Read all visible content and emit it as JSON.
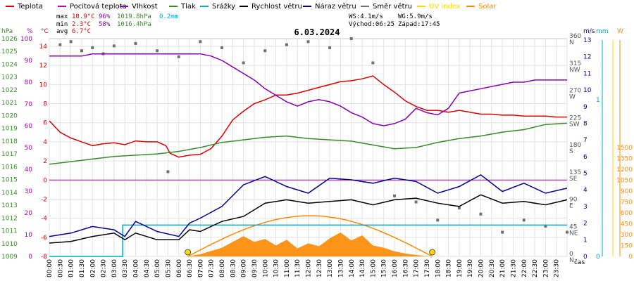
{
  "legend": [
    {
      "label": "Teplota",
      "color": "#dd0000"
    },
    {
      "label": "Pocitová teplota",
      "color": "#b000b0"
    },
    {
      "label": "Vlhkost",
      "color": "#8800b0"
    },
    {
      "label": "Tlak",
      "color": "#3a8a2a"
    },
    {
      "label": "Srážky",
      "color": "#00a8c8"
    },
    {
      "label": "Rychlost větru",
      "color": "#000000"
    },
    {
      "label": "Náraz větru",
      "color": "#000090"
    },
    {
      "label": "Směr větru",
      "color": "#707070"
    },
    {
      "label": "UV index",
      "color": "#ffd800"
    },
    {
      "label": "Solar",
      "color": "#ff8800"
    }
  ],
  "stats": {
    "max": {
      "label": "max",
      "temp": "10.9°C",
      "hum": "96%",
      "press": "1019.8hPa",
      "rain": "0.2mm"
    },
    "min": {
      "label": "min",
      "temp": "2.3°C",
      "hum": "58%",
      "press": "1016.4hPa"
    },
    "avg": {
      "label": "avg",
      "temp": "6.7°C"
    }
  },
  "wind_info": {
    "ws": "WS:4.1m/s",
    "wg": "WG:5.9m/s",
    "sunrise": "Východ:06:25",
    "sunset": "Západ:17:45"
  },
  "date": "6.03.2024",
  "axes": {
    "hpa": {
      "unit": "hPa",
      "ticks": [
        "1009",
        "1010",
        "1011",
        "1012",
        "1013",
        "1014",
        "1015",
        "1016",
        "1017",
        "1018",
        "1019",
        "1020",
        "1021",
        "1022",
        "1023",
        "1024",
        "1025",
        "1026"
      ]
    },
    "pct": {
      "unit": "%",
      "ticks": [
        "0",
        "10",
        "20",
        "30",
        "40",
        "50",
        "60",
        "70",
        "80",
        "90",
        "100"
      ]
    },
    "temp": {
      "unit": "°C",
      "ticks": [
        "-8",
        "-6",
        "-4",
        "-2",
        "0",
        "2",
        "4",
        "6",
        "8",
        "10",
        "12",
        "14"
      ]
    },
    "dir": {
      "ticks": [
        "0",
        "45",
        "90",
        "135",
        "180",
        "225",
        "270",
        "315",
        "360"
      ],
      "names": [
        "N",
        "NE",
        "E",
        "SE",
        "S",
        "SW",
        "W",
        "NW",
        "N"
      ]
    },
    "ms": {
      "unit": "m/s",
      "ticks": [
        "0",
        "1",
        "2",
        "3",
        "4",
        "5",
        "6",
        "7",
        "8",
        "9",
        "10",
        "11",
        "12",
        "13"
      ]
    },
    "mm": {
      "unit": "mm",
      "ticks": [
        "0",
        "1"
      ]
    },
    "w": {
      "unit": "W",
      "ticks": [
        "0",
        "150",
        "300",
        "450",
        "600",
        "750",
        "900",
        "1050",
        "1200",
        "1350",
        "1500"
      ]
    },
    "xlabel": "čas",
    "times": [
      "00:00",
      "00:30",
      "01:00",
      "01:30",
      "02:00",
      "02:30",
      "03:00",
      "03:30",
      "04:00",
      "04:30",
      "05:00",
      "05:30",
      "06:00",
      "06:30",
      "07:00",
      "07:30",
      "08:00",
      "08:30",
      "09:00",
      "09:30",
      "10:00",
      "10:30",
      "11:00",
      "11:30",
      "12:00",
      "12:30",
      "13:00",
      "13:30",
      "14:00",
      "14:30",
      "15:00",
      "15:30",
      "16:00",
      "16:30",
      "17:00",
      "17:30",
      "18:00",
      "18:30",
      "19:00",
      "19:30",
      "20:00",
      "20:30",
      "21:00",
      "21:30",
      "22:00",
      "22:30",
      "23:00",
      "23:30"
    ]
  },
  "chart_data": {
    "type": "line",
    "title": "6.03.2024",
    "x_unit": "hour of day",
    "series": [
      {
        "name": "Teplota",
        "color": "#dd0000",
        "axis": "temp",
        "points": [
          [
            0,
            6.2
          ],
          [
            0.5,
            5.0
          ],
          [
            1,
            4.4
          ],
          [
            1.5,
            4.0
          ],
          [
            2,
            3.6
          ],
          [
            2.5,
            3.8
          ],
          [
            3,
            3.9
          ],
          [
            3.5,
            3.7
          ],
          [
            4,
            4.1
          ],
          [
            4.5,
            4.0
          ],
          [
            5,
            4.0
          ],
          [
            5.4,
            3.6
          ],
          [
            5.6,
            2.8
          ],
          [
            6,
            2.4
          ],
          [
            6.5,
            2.6
          ],
          [
            7,
            2.7
          ],
          [
            7.5,
            3.3
          ],
          [
            8,
            4.6
          ],
          [
            8.5,
            6.3
          ],
          [
            9,
            7.2
          ],
          [
            9.5,
            8.0
          ],
          [
            10,
            8.4
          ],
          [
            10.5,
            8.9
          ],
          [
            11,
            8.9
          ],
          [
            11.5,
            9.1
          ],
          [
            12,
            9.4
          ],
          [
            12.5,
            9.7
          ],
          [
            13,
            10.0
          ],
          [
            13.5,
            10.3
          ],
          [
            14,
            10.4
          ],
          [
            14.5,
            10.6
          ],
          [
            15,
            10.9
          ],
          [
            15.5,
            10.0
          ],
          [
            16,
            9.2
          ],
          [
            16.5,
            8.3
          ],
          [
            17,
            7.7
          ],
          [
            17.5,
            7.3
          ],
          [
            18,
            7.3
          ],
          [
            18.5,
            7.1
          ],
          [
            19,
            7.3
          ],
          [
            19.5,
            7.1
          ],
          [
            20,
            6.9
          ],
          [
            20.5,
            6.9
          ],
          [
            21,
            6.8
          ],
          [
            21.5,
            6.8
          ],
          [
            22,
            6.7
          ],
          [
            22.5,
            6.7
          ],
          [
            23,
            6.7
          ],
          [
            23.5,
            6.6
          ],
          [
            24,
            6.6
          ]
        ]
      },
      {
        "name": "Vlhkost",
        "color": "#8800b0",
        "axis": "pct",
        "points": [
          [
            0,
            92
          ],
          [
            0.5,
            92
          ],
          [
            1,
            92
          ],
          [
            1.5,
            92
          ],
          [
            2,
            93
          ],
          [
            2.5,
            93
          ],
          [
            3,
            93
          ],
          [
            3.5,
            93
          ],
          [
            4,
            93
          ],
          [
            4.5,
            93
          ],
          [
            5,
            93
          ],
          [
            5.5,
            93
          ],
          [
            6,
            93
          ],
          [
            6.5,
            93
          ],
          [
            7,
            93
          ],
          [
            7.5,
            92
          ],
          [
            8,
            90
          ],
          [
            8.5,
            87
          ],
          [
            9,
            84
          ],
          [
            9.5,
            81
          ],
          [
            10,
            77
          ],
          [
            10.5,
            74
          ],
          [
            11,
            71
          ],
          [
            11.5,
            69
          ],
          [
            12,
            71
          ],
          [
            12.5,
            72
          ],
          [
            13,
            71
          ],
          [
            13.5,
            69
          ],
          [
            14,
            66
          ],
          [
            14.5,
            64
          ],
          [
            15,
            61
          ],
          [
            15.5,
            60
          ],
          [
            16,
            61
          ],
          [
            16.5,
            63
          ],
          [
            17,
            68
          ],
          [
            17.5,
            66
          ],
          [
            18,
            65
          ],
          [
            18.5,
            68
          ],
          [
            19,
            75
          ],
          [
            19.5,
            76
          ],
          [
            20,
            77
          ],
          [
            20.5,
            78
          ],
          [
            21,
            79
          ],
          [
            21.5,
            80
          ],
          [
            22,
            80
          ],
          [
            22.5,
            81
          ],
          [
            23,
            81
          ],
          [
            23.5,
            81
          ],
          [
            24,
            81
          ]
        ]
      },
      {
        "name": "Tlak",
        "color": "#3a8a2a",
        "axis": "hpa",
        "points": [
          [
            0,
            1016.2
          ],
          [
            1,
            1016.4
          ],
          [
            2,
            1016.6
          ],
          [
            3,
            1016.8
          ],
          [
            4,
            1016.9
          ],
          [
            5,
            1017.0
          ],
          [
            6,
            1017.2
          ],
          [
            7,
            1017.5
          ],
          [
            8,
            1017.9
          ],
          [
            9,
            1018.1
          ],
          [
            10,
            1018.3
          ],
          [
            11,
            1018.4
          ],
          [
            12,
            1018.2
          ],
          [
            13,
            1018.1
          ],
          [
            14,
            1018.0
          ],
          [
            15,
            1017.7
          ],
          [
            16,
            1017.4
          ],
          [
            17,
            1017.5
          ],
          [
            18,
            1017.9
          ],
          [
            19,
            1018.2
          ],
          [
            20,
            1018.4
          ],
          [
            21,
            1018.7
          ],
          [
            22,
            1018.9
          ],
          [
            23,
            1019.3
          ],
          [
            24,
            1019.4
          ]
        ]
      },
      {
        "name": "Srážky",
        "color": "#00a8c8",
        "axis": "mm",
        "points": [
          [
            0,
            0
          ],
          [
            3.4,
            0
          ],
          [
            3.4,
            0.2
          ],
          [
            24,
            0.2
          ]
        ]
      },
      {
        "name": "Rychlost větru",
        "color": "#000000",
        "axis": "ms",
        "points": [
          [
            0,
            0.8
          ],
          [
            1,
            0.9
          ],
          [
            2,
            1.2
          ],
          [
            3,
            1.4
          ],
          [
            3.5,
            1.0
          ],
          [
            4,
            1.4
          ],
          [
            5,
            1.0
          ],
          [
            6,
            1.0
          ],
          [
            6.5,
            1.6
          ],
          [
            7,
            1.5
          ],
          [
            8,
            2.1
          ],
          [
            9,
            2.4
          ],
          [
            10,
            3.2
          ],
          [
            11,
            3.4
          ],
          [
            12,
            3.2
          ],
          [
            13,
            3.3
          ],
          [
            14,
            3.4
          ],
          [
            15,
            3.1
          ],
          [
            16,
            3.4
          ],
          [
            17,
            3.5
          ],
          [
            18,
            3.2
          ],
          [
            19,
            3.0
          ],
          [
            20,
            3.7
          ],
          [
            21,
            3.2
          ],
          [
            22,
            3.3
          ],
          [
            23,
            3.1
          ],
          [
            24,
            3.4
          ]
        ]
      },
      {
        "name": "Náraz větru",
        "color": "#000090",
        "axis": "ms",
        "points": [
          [
            0,
            1.2
          ],
          [
            1,
            1.4
          ],
          [
            2,
            1.8
          ],
          [
            3,
            1.6
          ],
          [
            3.5,
            1.2
          ],
          [
            4,
            2.1
          ],
          [
            5,
            1.5
          ],
          [
            6,
            1.2
          ],
          [
            6.5,
            2.0
          ],
          [
            7,
            2.3
          ],
          [
            8,
            3.0
          ],
          [
            9,
            4.3
          ],
          [
            10,
            4.8
          ],
          [
            11,
            4.2
          ],
          [
            12,
            3.8
          ],
          [
            13,
            4.7
          ],
          [
            14,
            4.6
          ],
          [
            15,
            4.4
          ],
          [
            16,
            4.7
          ],
          [
            17,
            4.5
          ],
          [
            18,
            3.8
          ],
          [
            19,
            4.2
          ],
          [
            20,
            4.9
          ],
          [
            21,
            3.9
          ],
          [
            22,
            4.4
          ],
          [
            23,
            3.8
          ],
          [
            24,
            4.1
          ]
        ]
      },
      {
        "name": "Solar",
        "color": "#ff8800",
        "axis": "w",
        "points": [
          [
            6.4,
            0
          ],
          [
            7,
            30
          ],
          [
            8,
            120
          ],
          [
            9,
            280
          ],
          [
            9.5,
            200
          ],
          [
            10,
            240
          ],
          [
            10.5,
            150
          ],
          [
            11,
            230
          ],
          [
            11.5,
            110
          ],
          [
            12,
            180
          ],
          [
            12.5,
            140
          ],
          [
            13,
            250
          ],
          [
            13.5,
            330
          ],
          [
            14,
            220
          ],
          [
            14.5,
            290
          ],
          [
            15,
            150
          ],
          [
            15.5,
            120
          ],
          [
            16,
            70
          ],
          [
            16.5,
            40
          ],
          [
            17,
            20
          ],
          [
            17.6,
            0
          ]
        ]
      }
    ],
    "solar_theoretical": {
      "name": "Solar",
      "color": "#ff8800",
      "peak_time": 12.1,
      "peak": 560,
      "rise": 6.42,
      "set": 17.75
    },
    "wind_direction_samples": [
      [
        0.5,
        350
      ],
      [
        1,
        355
      ],
      [
        1.5,
        340
      ],
      [
        2,
        345
      ],
      [
        2.5,
        335
      ],
      [
        3,
        348
      ],
      [
        4,
        352
      ],
      [
        5,
        340
      ],
      [
        5.5,
        140
      ],
      [
        6,
        330
      ],
      [
        7,
        355
      ],
      [
        8,
        345
      ],
      [
        9,
        320
      ],
      [
        10,
        340
      ],
      [
        11,
        350
      ],
      [
        12,
        355
      ],
      [
        13,
        345
      ],
      [
        14,
        360
      ],
      [
        15,
        320
      ],
      [
        16,
        100
      ],
      [
        17,
        90
      ],
      [
        18,
        60
      ],
      [
        19,
        80
      ],
      [
        20,
        70
      ],
      [
        21,
        40
      ],
      [
        22,
        60
      ],
      [
        23,
        50
      ],
      [
        24,
        40
      ]
    ]
  }
}
